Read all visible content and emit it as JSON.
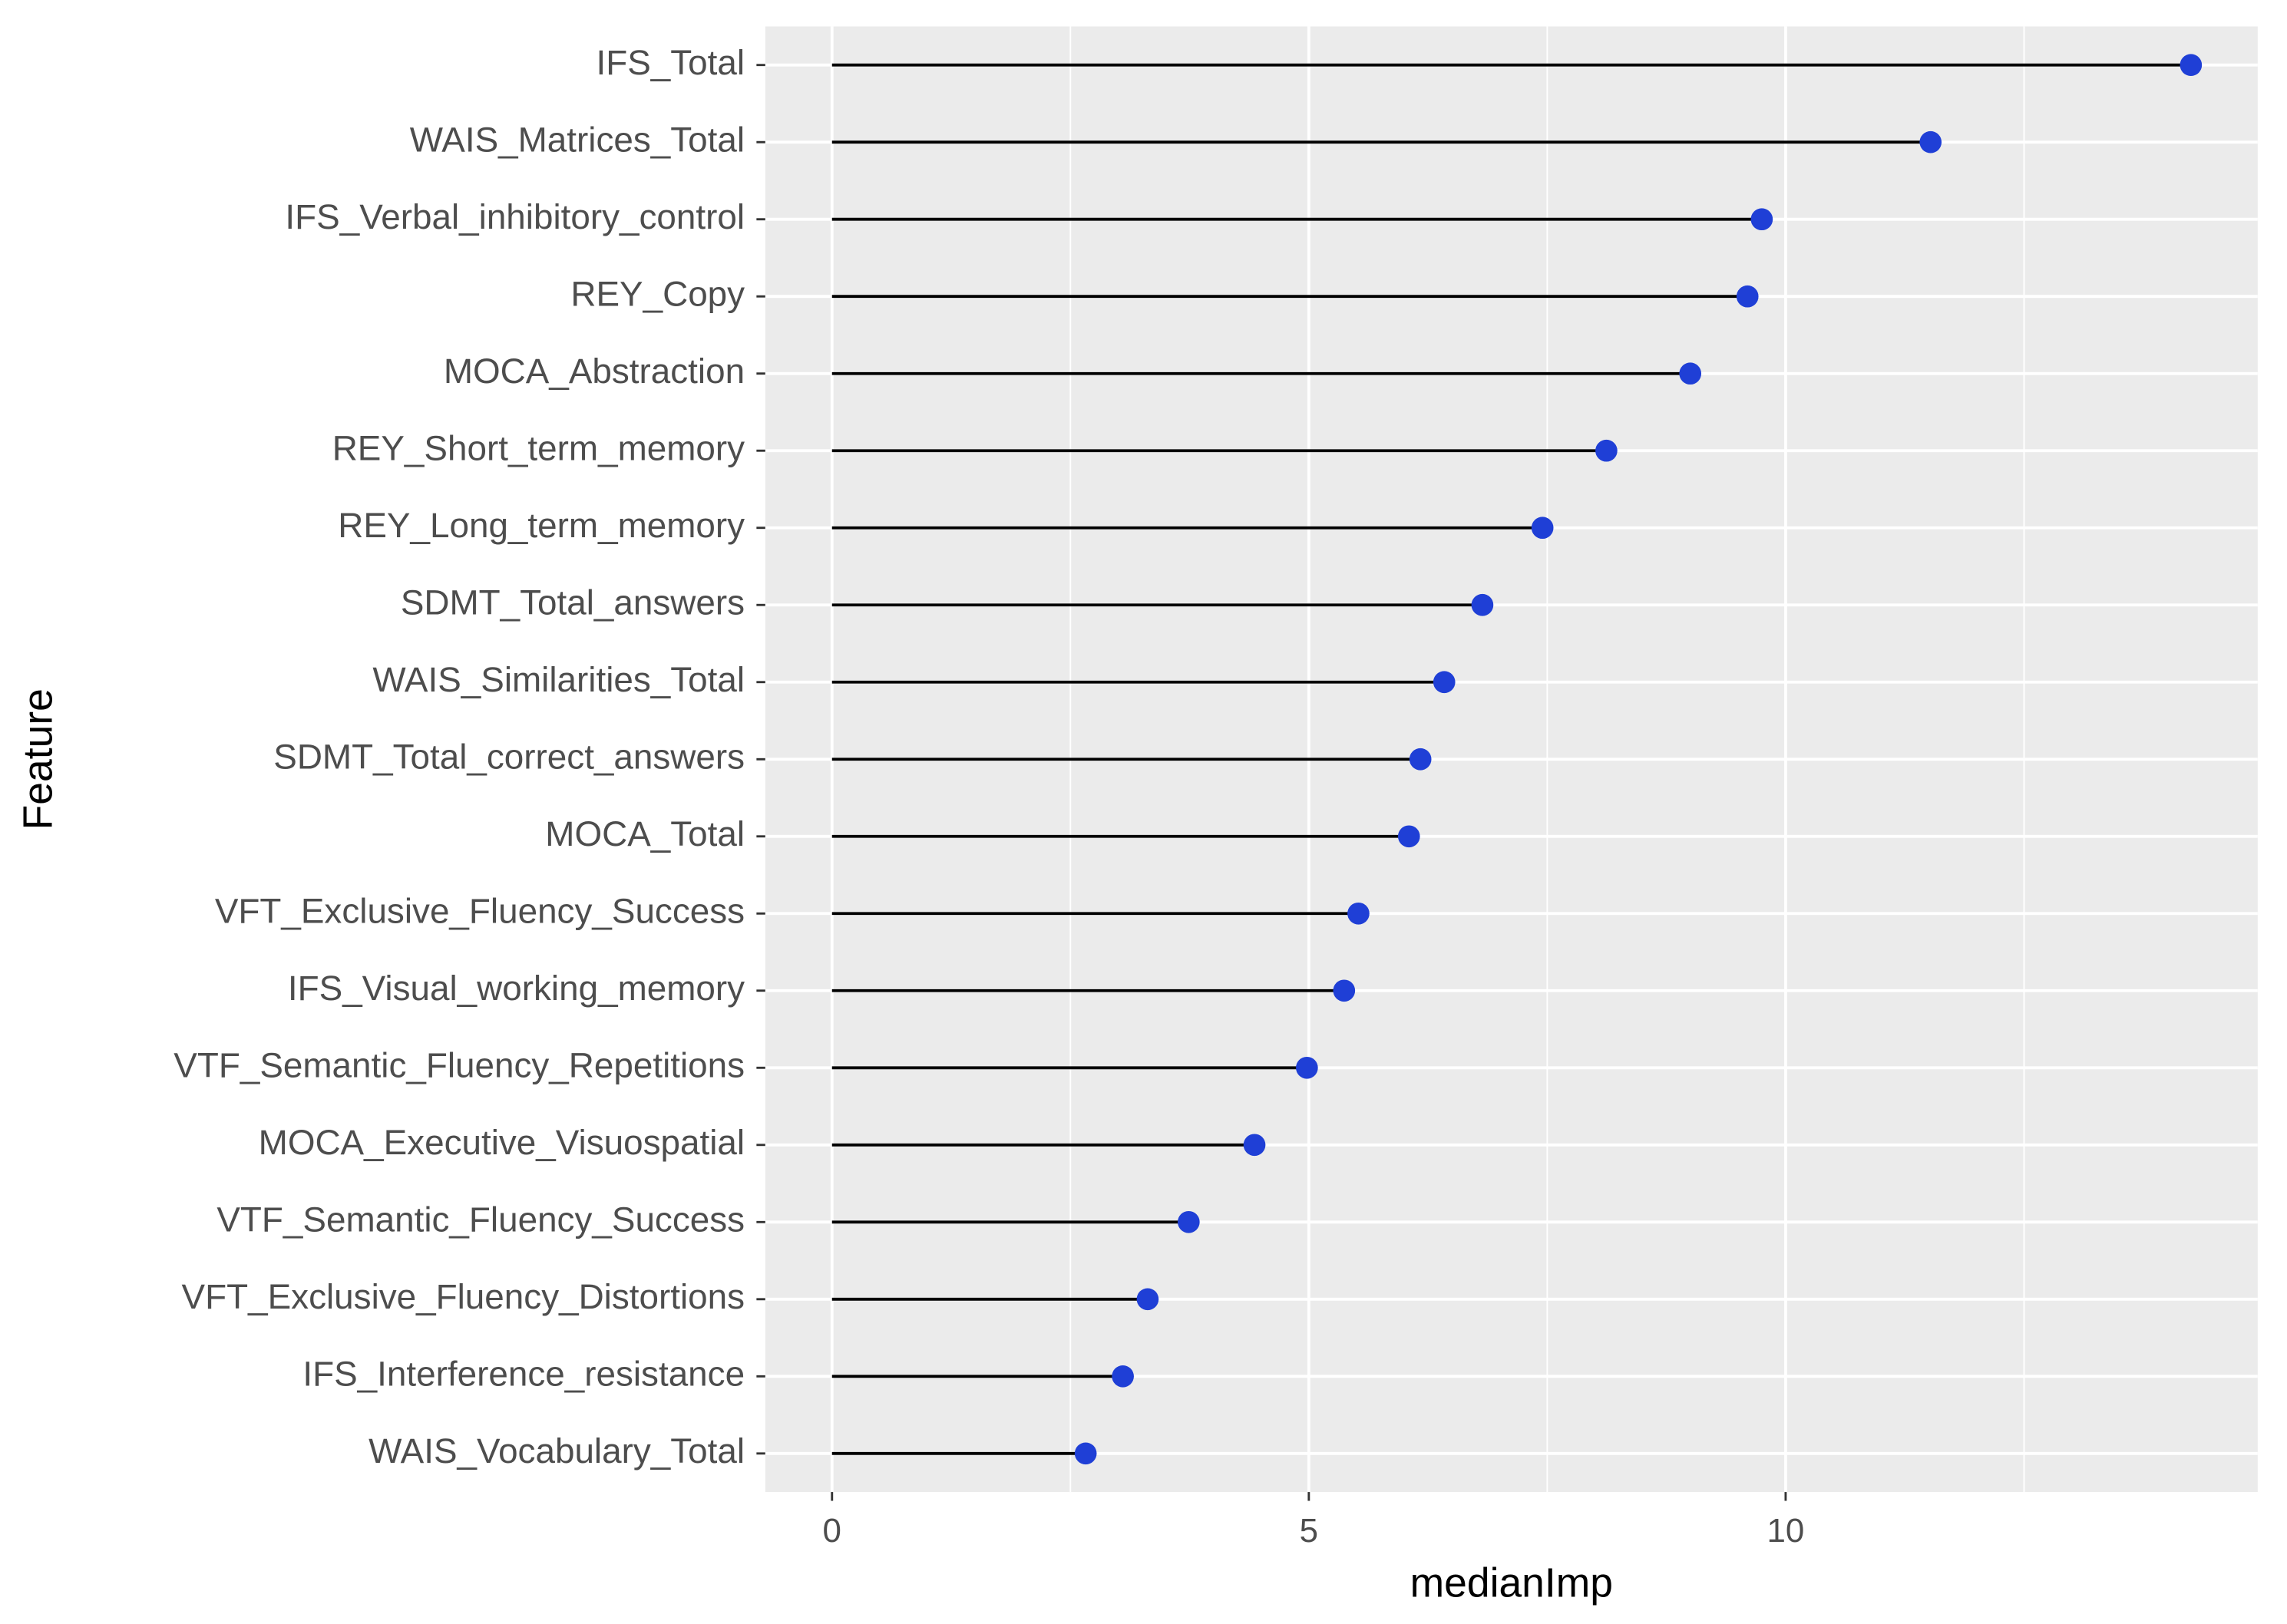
{
  "chart_data": {
    "type": "lollipop",
    "categories": [
      "IFS_Total",
      "WAIS_Matrices_Total",
      "IFS_Verbal_inhibitory_control",
      "REY_Copy",
      "MOCA_Abstraction",
      "REY_Short_term_memory",
      "REY_Long_term_memory",
      "SDMT_Total_answers",
      "WAIS_Similarities_Total",
      "SDMT_Total_correct_answers",
      "MOCA_Total",
      "VFT_Exclusive_Fluency_Success",
      "IFS_Visual_working_memory",
      "VTF_Semantic_Fluency_Repetitions",
      "MOCA_Executive_Visuospatial",
      "VTF_Semantic_Fluency_Success",
      "VFT_Exclusive_Fluency_Distortions",
      "IFS_Interference_resistance",
      "WAIS_Vocabulary_Total"
    ],
    "values": [
      14.25,
      11.52,
      9.75,
      9.6,
      9.0,
      8.12,
      7.45,
      6.82,
      6.42,
      6.17,
      6.05,
      5.52,
      5.37,
      4.98,
      4.43,
      3.74,
      3.31,
      3.05,
      2.66
    ],
    "color": "#1f3fd6",
    "xlabel": "medianImp",
    "ylabel": "Feature",
    "xlim": [
      -0.7,
      14.95
    ],
    "xticks": [
      0,
      5,
      10
    ],
    "x_minor_ticks": [
      2.5,
      7.5,
      12.5
    ],
    "grid": true
  }
}
